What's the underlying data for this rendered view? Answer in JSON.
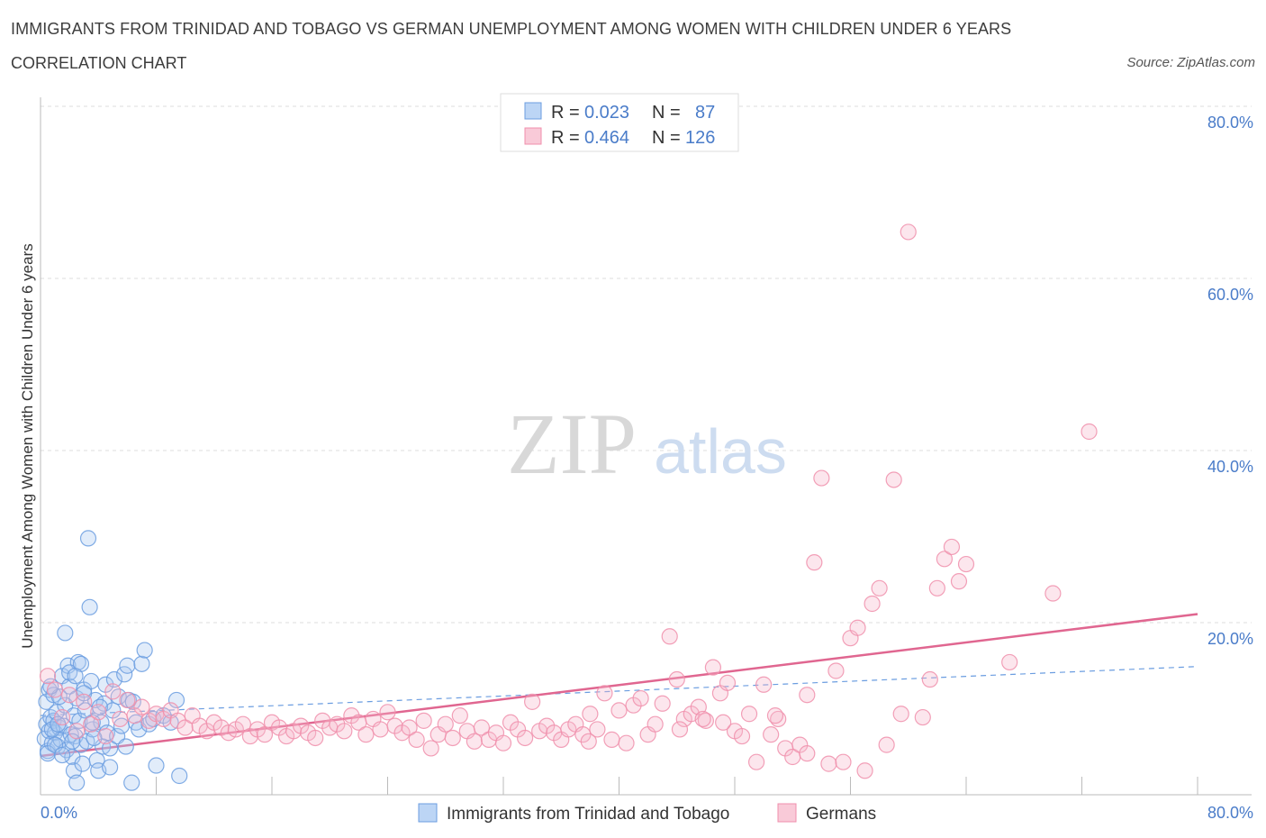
{
  "header": {
    "title": "IMMIGRANTS FROM TRINIDAD AND TOBAGO VS GERMAN UNEMPLOYMENT AMONG WOMEN WITH CHILDREN UNDER 6 YEARS",
    "subtitle": "CORRELATION CHART",
    "source": "Source: ZipAtlas.com"
  },
  "watermark": {
    "zip": "ZIP",
    "atlas": "atlas"
  },
  "legend": {
    "rows": [
      {
        "r_label": "R = ",
        "r_value": "0.023",
        "n_label": "N = ",
        "n_value": "87",
        "color": "#a9c8f0"
      },
      {
        "r_label": "R = ",
        "r_value": "0.464",
        "n_label": "N = ",
        "n_value": "126",
        "color": "#f5b8cb"
      }
    ]
  },
  "bottom_legend": {
    "items": [
      {
        "label": "Immigrants from Trinidad and Tobago",
        "color": "#a9c8f0"
      },
      {
        "label": "Germans",
        "color": "#f5b8cb"
      }
    ]
  },
  "chart_data": {
    "type": "scatter",
    "title": "IMMIGRANTS FROM TRINIDAD AND TOBAGO VS GERMAN UNEMPLOYMENT AMONG WOMEN WITH CHILDREN UNDER 6 YEARS",
    "subtitle": "CORRELATION CHART",
    "xlabel": "",
    "ylabel": "Unemployment Among Women with Children Under 6 years",
    "xlim": [
      0,
      80
    ],
    "ylim": [
      0,
      80
    ],
    "x_tick_labels": [
      "0.0%",
      "80.0%"
    ],
    "y_tick_labels": [
      "20.0%",
      "40.0%",
      "60.0%",
      "80.0%"
    ],
    "y_ticks": [
      20,
      40,
      60,
      80
    ],
    "grid": true,
    "legend_position": "top-center",
    "colors": {
      "blue": "#6b9de0",
      "blue_fill": "#a9c8f0",
      "pink": "#f08fac",
      "pink_fill": "#f5b8cb",
      "pink_line": "#e06690",
      "blue_line": "#6b9de0"
    },
    "series": [
      {
        "name": "Immigrants from Trinidad and Tobago",
        "R": 0.023,
        "N": 87,
        "trend": {
          "x": [
            0,
            80
          ],
          "y": [
            9.2,
            14.9
          ],
          "style": "dashed"
        },
        "points": [
          [
            0.3,
            6.5
          ],
          [
            0.4,
            8.2
          ],
          [
            0.5,
            5.1
          ],
          [
            0.6,
            7.4
          ],
          [
            0.7,
            9.0
          ],
          [
            0.8,
            6.0
          ],
          [
            0.9,
            8.6
          ],
          [
            1.0,
            7.2
          ],
          [
            0.4,
            10.8
          ],
          [
            0.6,
            12.2
          ],
          [
            1.2,
            5.6
          ],
          [
            1.1,
            9.6
          ],
          [
            0.5,
            4.8
          ],
          [
            0.9,
            11.6
          ],
          [
            1.3,
            7.8
          ],
          [
            1.4,
            6.4
          ],
          [
            1.5,
            13.8
          ],
          [
            1.6,
            8.0
          ],
          [
            1.7,
            10.4
          ],
          [
            1.8,
            5.2
          ],
          [
            1.9,
            15.0
          ],
          [
            2.0,
            12.6
          ],
          [
            2.1,
            7.0
          ],
          [
            2.2,
            4.4
          ],
          [
            2.3,
            9.2
          ],
          [
            2.4,
            6.8
          ],
          [
            2.5,
            11.2
          ],
          [
            2.6,
            15.4
          ],
          [
            2.7,
            8.6
          ],
          [
            2.8,
            5.8
          ],
          [
            1.7,
            18.8
          ],
          [
            2.0,
            14.2
          ],
          [
            2.3,
            2.8
          ],
          [
            2.5,
            1.4
          ],
          [
            2.8,
            15.2
          ],
          [
            3.0,
            12.2
          ],
          [
            3.1,
            9.8
          ],
          [
            3.2,
            6.2
          ],
          [
            3.4,
            21.8
          ],
          [
            3.3,
            29.8
          ],
          [
            3.5,
            13.2
          ],
          [
            3.6,
            7.6
          ],
          [
            3.8,
            11.0
          ],
          [
            3.9,
            4.0
          ],
          [
            4.0,
            2.8
          ],
          [
            4.2,
            8.4
          ],
          [
            4.3,
            5.6
          ],
          [
            4.4,
            10.6
          ],
          [
            4.5,
            12.8
          ],
          [
            4.6,
            7.2
          ],
          [
            4.8,
            5.4
          ],
          [
            5.0,
            9.8
          ],
          [
            5.1,
            13.4
          ],
          [
            5.3,
            6.8
          ],
          [
            5.4,
            11.4
          ],
          [
            5.6,
            8.0
          ],
          [
            5.8,
            14.0
          ],
          [
            5.9,
            5.6
          ],
          [
            3.6,
            8.4
          ],
          [
            3.0,
            11.8
          ],
          [
            6.0,
            15.0
          ],
          [
            6.1,
            11.0
          ],
          [
            6.3,
            1.4
          ],
          [
            6.4,
            10.8
          ],
          [
            6.6,
            8.4
          ],
          [
            6.8,
            7.6
          ],
          [
            7.0,
            15.2
          ],
          [
            7.2,
            16.8
          ],
          [
            7.5,
            8.2
          ],
          [
            7.8,
            8.8
          ],
          [
            4.8,
            3.2
          ],
          [
            0.8,
            7.6
          ],
          [
            1.0,
            5.8
          ],
          [
            1.2,
            8.2
          ],
          [
            1.5,
            4.6
          ],
          [
            2.2,
            6.2
          ],
          [
            2.9,
            3.6
          ],
          [
            3.7,
            6.6
          ],
          [
            4.1,
            10.2
          ],
          [
            1.3,
            11.4
          ],
          [
            8.0,
            3.4
          ],
          [
            8.5,
            9.2
          ],
          [
            9.0,
            8.4
          ],
          [
            9.4,
            11.0
          ],
          [
            9.6,
            2.2
          ],
          [
            2.4,
            13.8
          ],
          [
            0.7,
            12.6
          ]
        ]
      },
      {
        "name": "Germans",
        "R": 0.464,
        "N": 126,
        "trend": {
          "x": [
            0,
            80
          ],
          "y": [
            4.5,
            21.0
          ],
          "style": "solid"
        },
        "points": [
          [
            0.5,
            13.8
          ],
          [
            1.0,
            12.2
          ],
          [
            1.5,
            9.0
          ],
          [
            2.0,
            11.6
          ],
          [
            2.5,
            7.4
          ],
          [
            3.0,
            10.8
          ],
          [
            3.5,
            8.2
          ],
          [
            4.0,
            9.6
          ],
          [
            4.5,
            6.8
          ],
          [
            5.0,
            12.0
          ],
          [
            5.5,
            8.8
          ],
          [
            6.0,
            11.0
          ],
          [
            6.5,
            9.2
          ],
          [
            7.0,
            10.2
          ],
          [
            7.5,
            8.6
          ],
          [
            8.0,
            9.4
          ],
          [
            8.5,
            8.8
          ],
          [
            9.0,
            9.8
          ],
          [
            9.5,
            8.6
          ],
          [
            10.0,
            7.8
          ],
          [
            10.5,
            9.2
          ],
          [
            11.0,
            8.0
          ],
          [
            11.5,
            7.4
          ],
          [
            12.0,
            8.4
          ],
          [
            12.5,
            7.8
          ],
          [
            13.0,
            7.2
          ],
          [
            13.5,
            7.6
          ],
          [
            14.0,
            8.2
          ],
          [
            14.5,
            6.8
          ],
          [
            15.0,
            7.6
          ],
          [
            15.5,
            7.0
          ],
          [
            16.0,
            8.4
          ],
          [
            16.5,
            7.8
          ],
          [
            17.0,
            6.8
          ],
          [
            17.5,
            7.4
          ],
          [
            18.0,
            8.0
          ],
          [
            18.5,
            7.2
          ],
          [
            19.0,
            6.6
          ],
          [
            19.5,
            8.6
          ],
          [
            20.0,
            7.8
          ],
          [
            20.5,
            8.2
          ],
          [
            21.0,
            7.4
          ],
          [
            21.5,
            9.2
          ],
          [
            22.0,
            8.4
          ],
          [
            22.5,
            7.0
          ],
          [
            23.0,
            8.8
          ],
          [
            23.5,
            7.6
          ],
          [
            24.0,
            9.6
          ],
          [
            24.5,
            8.0
          ],
          [
            25.0,
            7.2
          ],
          [
            25.5,
            7.8
          ],
          [
            26.0,
            6.4
          ],
          [
            26.5,
            8.6
          ],
          [
            27.0,
            5.4
          ],
          [
            27.5,
            7.0
          ],
          [
            28.0,
            8.2
          ],
          [
            28.5,
            6.6
          ],
          [
            29.0,
            9.2
          ],
          [
            29.5,
            7.4
          ],
          [
            30.0,
            6.2
          ],
          [
            30.5,
            7.8
          ],
          [
            31.0,
            6.4
          ],
          [
            31.5,
            7.2
          ],
          [
            32.0,
            6.0
          ],
          [
            32.5,
            8.4
          ],
          [
            33.0,
            7.6
          ],
          [
            33.5,
            6.6
          ],
          [
            34.0,
            10.8
          ],
          [
            34.5,
            7.4
          ],
          [
            35.0,
            8.0
          ],
          [
            35.5,
            7.2
          ],
          [
            36.0,
            6.4
          ],
          [
            36.5,
            7.6
          ],
          [
            37.0,
            8.2
          ],
          [
            37.5,
            7.0
          ],
          [
            38.0,
            9.4
          ],
          [
            38.5,
            7.6
          ],
          [
            39.0,
            11.8
          ],
          [
            39.5,
            6.4
          ],
          [
            40.0,
            9.8
          ],
          [
            40.5,
            6.0
          ],
          [
            41.0,
            10.4
          ],
          [
            41.5,
            11.2
          ],
          [
            42.0,
            7.0
          ],
          [
            42.5,
            8.2
          ],
          [
            43.0,
            10.6
          ],
          [
            43.5,
            18.4
          ],
          [
            44.0,
            13.4
          ],
          [
            44.5,
            8.8
          ],
          [
            45.0,
            9.4
          ],
          [
            45.5,
            10.2
          ],
          [
            46.0,
            8.6
          ],
          [
            46.5,
            14.8
          ],
          [
            47.0,
            11.8
          ],
          [
            47.5,
            13.0
          ],
          [
            48.0,
            7.4
          ],
          [
            48.5,
            6.8
          ],
          [
            49.0,
            9.4
          ],
          [
            49.5,
            3.8
          ],
          [
            50.0,
            12.8
          ],
          [
            50.5,
            7.0
          ],
          [
            51.0,
            8.8
          ],
          [
            51.5,
            5.4
          ],
          [
            52.0,
            4.4
          ],
          [
            52.5,
            5.8
          ],
          [
            53.0,
            11.6
          ],
          [
            53.5,
            27.0
          ],
          [
            54.0,
            36.8
          ],
          [
            54.5,
            3.6
          ],
          [
            55.0,
            14.4
          ],
          [
            55.5,
            3.8
          ],
          [
            56.0,
            18.2
          ],
          [
            56.5,
            19.4
          ],
          [
            57.0,
            2.8
          ],
          [
            57.5,
            22.2
          ],
          [
            58.0,
            24.0
          ],
          [
            58.5,
            5.8
          ],
          [
            59.0,
            36.6
          ],
          [
            59.5,
            9.4
          ],
          [
            60.0,
            65.4
          ],
          [
            61.0,
            9.0
          ],
          [
            61.5,
            13.4
          ],
          [
            62.0,
            24.0
          ],
          [
            62.5,
            27.4
          ],
          [
            63.0,
            28.8
          ],
          [
            63.5,
            24.8
          ],
          [
            64.0,
            26.8
          ],
          [
            67.0,
            15.4
          ],
          [
            70.0,
            23.4
          ],
          [
            72.5,
            42.2
          ],
          [
            47.2,
            8.4
          ],
          [
            50.8,
            9.2
          ],
          [
            53.0,
            4.8
          ],
          [
            44.2,
            7.6
          ],
          [
            37.9,
            6.2
          ],
          [
            45.8,
            8.8
          ]
        ]
      }
    ]
  }
}
